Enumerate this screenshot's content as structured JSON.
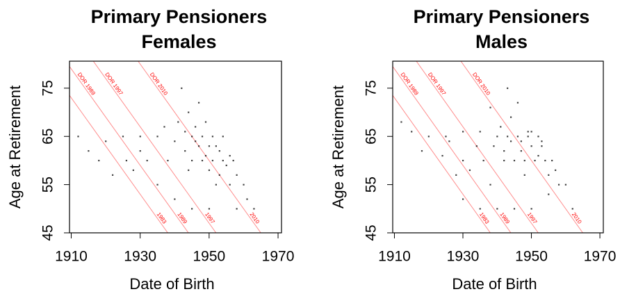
{
  "chart_data": [
    {
      "type": "scatter",
      "title": [
        "Primary Pensioners",
        "Females"
      ],
      "xlabel": "Date of Birth",
      "ylabel": "Age at Retirement",
      "x": [
        1945,
        1948,
        1951,
        1954,
        1947,
        1950,
        1953,
        1956,
        1945,
        1948,
        1951,
        1954,
        1957,
        1943,
        1946,
        1949,
        1944,
        1947,
        1940,
        1935,
        1930,
        1925,
        1920,
        1915,
        1938,
        1932,
        1926,
        1958,
        1960,
        1956,
        1952,
        1961,
        1958,
        1963,
        1950,
        1945,
        1940,
        1935,
        1928,
        1922,
        1918,
        1942,
        1944,
        1950,
        1953,
        1930,
        1912,
        1937,
        1946,
        1955,
        1949,
        1952,
        1943,
        1941
      ],
      "y": [
        65,
        65,
        65,
        65,
        63,
        63,
        62,
        61,
        60,
        60,
        60,
        60,
        60,
        62,
        67,
        68,
        70,
        72,
        64,
        65,
        65,
        65,
        64,
        62,
        60,
        60,
        60,
        57,
        55,
        55,
        55,
        52,
        50,
        50,
        50,
        50,
        52,
        55,
        58,
        57,
        60,
        75,
        58,
        58,
        57,
        62,
        65,
        67,
        64,
        59,
        61,
        63,
        66,
        68
      ],
      "color": "#000000",
      "xlim": [
        1909.5,
        1971
      ],
      "ylim": [
        45,
        80.6
      ],
      "xticks": [
        1910,
        1930,
        1950,
        1970
      ],
      "yticks": [
        45,
        55,
        65,
        75
      ],
      "dor_lines": {
        "values": [
          1983,
          1989,
          1997,
          2010
        ],
        "start_labels": [
          null,
          "DOR 1989",
          "DOR 1997",
          "DOR 2010"
        ],
        "end_labels": [
          "1983",
          "1989",
          "1997",
          "2010"
        ],
        "color": "#ff0000"
      }
    },
    {
      "type": "scatter",
      "title": [
        "Primary Pensioners",
        "Males"
      ],
      "xlabel": "Date of Birth",
      "ylabel": "Age at Retirement",
      "x": [
        1940,
        1943,
        1946,
        1949,
        1952,
        1944,
        1947,
        1950,
        1953,
        1942,
        1945,
        1948,
        1951,
        1954,
        1956,
        1941,
        1944,
        1938,
        1946,
        1950,
        1935,
        1930,
        1925,
        1920,
        1915,
        1912,
        1936,
        1930,
        1924,
        1918,
        1955,
        1958,
        1960,
        1950,
        1945,
        1940,
        1935,
        1930,
        1955,
        1962,
        1948,
        1938,
        1932,
        1928,
        1942,
        1947,
        1952,
        1943,
        1939,
        1949,
        1953,
        1957,
        1934,
        1926
      ],
      "y": [
        65,
        65,
        65,
        65,
        65,
        64,
        64,
        63,
        63,
        60,
        60,
        60,
        60,
        60,
        60,
        67,
        69,
        71,
        72,
        66,
        66,
        66,
        65,
        65,
        66,
        68,
        60,
        60,
        61,
        62,
        57,
        55,
        55,
        50,
        50,
        50,
        50,
        52,
        53,
        50,
        57,
        55,
        58,
        57,
        62,
        62,
        61,
        75,
        63,
        66,
        64,
        58,
        63,
        64
      ],
      "color": "#000000",
      "xlim": [
        1909.5,
        1971
      ],
      "ylim": [
        45,
        80.6
      ],
      "xticks": [
        1910,
        1930,
        1950,
        1970
      ],
      "yticks": [
        45,
        55,
        65,
        75
      ],
      "dor_lines": {
        "values": [
          1983,
          1989,
          1997,
          2010
        ],
        "start_labels": [
          null,
          "DOR 1989",
          "DOR 1997",
          "DOR 2010"
        ],
        "end_labels": [
          "1983",
          "1989",
          "1997",
          "2010"
        ],
        "color": "#ff0000"
      }
    }
  ]
}
